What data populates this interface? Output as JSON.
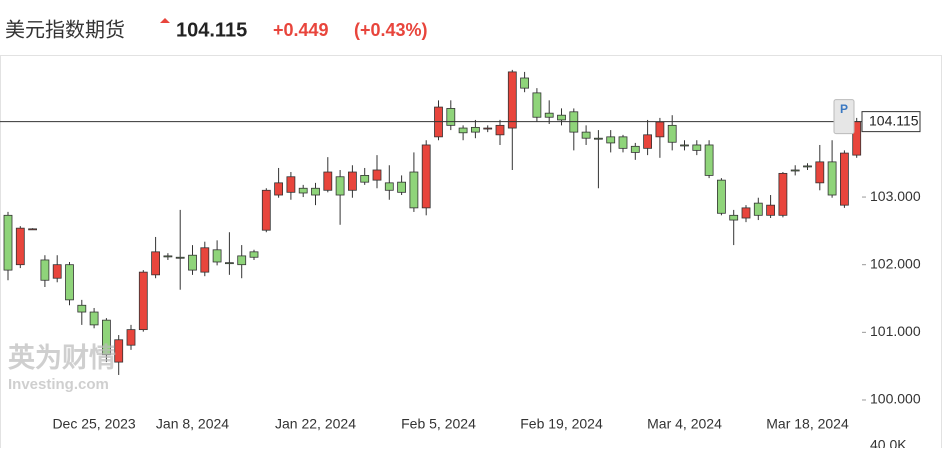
{
  "header": {
    "name": "美元指数期货",
    "price": "104.115",
    "change": "+0.449",
    "change_pct": "(+0.43%)"
  },
  "watermark": {
    "brand": "英为财情",
    "site": "Investing.com"
  },
  "chart_data": {
    "type": "candlestick",
    "categories": [
      null,
      null,
      null,
      null,
      null,
      null,
      null,
      "Dec 25, 2023",
      null,
      null,
      null,
      null,
      null,
      null,
      null,
      "Jan 8, 2024",
      null,
      null,
      null,
      null,
      null,
      null,
      null,
      null,
      null,
      "Jan 22, 2024",
      null,
      null,
      null,
      null,
      null,
      null,
      null,
      null,
      null,
      "Feb 5, 2024",
      null,
      null,
      null,
      null,
      null,
      null,
      null,
      null,
      null,
      "Feb 19, 2024",
      null,
      null,
      null,
      null,
      null,
      null,
      null,
      null,
      null,
      "Mar 4, 2024",
      null,
      null,
      null,
      null,
      null,
      null,
      null,
      null,
      null,
      "Mar 18, 2024",
      null,
      null,
      null,
      null
    ],
    "open": [
      102.73,
      102.0,
      102.53,
      102.07,
      101.8,
      102.0,
      101.4,
      101.3,
      101.18,
      100.56,
      100.81,
      101.04,
      101.85,
      102.13,
      102.11,
      102.14,
      101.89,
      102.22,
      102.03,
      102.13,
      102.19,
      102.51,
      103.03,
      103.07,
      103.13,
      103.13,
      103.1,
      103.3,
      103.1,
      103.32,
      103.25,
      103.21,
      103.22,
      103.37,
      102.84,
      103.89,
      104.31,
      104.02,
      104.03,
      104.02,
      103.92,
      104.02,
      104.76,
      104.54,
      104.24,
      104.21,
      104.26,
      103.96,
      103.87,
      103.89,
      103.89,
      103.75,
      103.72,
      103.89,
      104.06,
      103.77,
      103.77,
      103.77,
      103.25,
      102.73,
      102.69,
      102.91,
      102.73,
      102.73,
      103.4,
      103.46,
      103.21,
      103.52,
      102.88,
      103.62
    ],
    "high": [
      102.78,
      102.57,
      102.54,
      102.14,
      102.14,
      102.04,
      101.48,
      101.36,
      101.21,
      100.96,
      101.11,
      101.92,
      102.41,
      102.17,
      102.81,
      102.29,
      102.34,
      102.36,
      102.48,
      102.29,
      102.22,
      103.13,
      103.43,
      103.37,
      103.18,
      103.21,
      103.59,
      103.4,
      103.47,
      103.43,
      103.62,
      103.47,
      103.32,
      103.66,
      103.84,
      104.43,
      104.43,
      104.06,
      104.14,
      104.06,
      104.14,
      104.88,
      104.85,
      104.61,
      104.43,
      104.31,
      104.31,
      104.06,
      103.99,
      103.99,
      103.92,
      103.8,
      104.14,
      104.17,
      104.21,
      103.84,
      103.84,
      103.84,
      103.28,
      102.81,
      102.88,
      102.99,
      103.03,
      103.37,
      103.47,
      103.5,
      103.77,
      103.84,
      103.69,
      104.17
    ],
    "low": [
      101.77,
      101.95,
      102.52,
      101.67,
      101.74,
      101.4,
      101.11,
      101.06,
      100.56,
      100.37,
      100.74,
      101.01,
      101.8,
      102.07,
      101.63,
      101.85,
      101.83,
      101.99,
      101.85,
      101.8,
      102.07,
      102.48,
      102.99,
      102.96,
      103.0,
      102.88,
      103.07,
      102.59,
      102.99,
      103.18,
      103.13,
      102.96,
      103.03,
      102.78,
      102.73,
      103.84,
      103.99,
      103.84,
      103.87,
      103.96,
      103.77,
      103.4,
      104.55,
      104.11,
      104.08,
      104.06,
      103.69,
      103.77,
      103.13,
      103.66,
      103.66,
      103.55,
      103.62,
      103.58,
      103.69,
      103.69,
      103.62,
      103.28,
      102.73,
      102.29,
      102.63,
      102.66,
      102.69,
      102.7,
      103.32,
      103.4,
      103.1,
      102.99,
      102.84,
      103.58
    ],
    "close": [
      101.92,
      102.54,
      102.53,
      101.77,
      102.0,
      101.48,
      101.3,
      101.11,
      100.67,
      100.89,
      101.04,
      101.89,
      102.19,
      102.12,
      102.1,
      101.92,
      102.25,
      102.04,
      102.02,
      102.0,
      102.11,
      103.1,
      103.21,
      103.3,
      103.06,
      103.03,
      103.37,
      103.03,
      103.37,
      103.22,
      103.4,
      103.1,
      103.07,
      102.84,
      103.77,
      104.33,
      104.06,
      103.95,
      103.96,
      104.02,
      104.06,
      104.85,
      104.61,
      104.18,
      104.18,
      104.14,
      103.96,
      103.87,
      103.86,
      103.8,
      103.72,
      103.66,
      103.92,
      104.11,
      103.81,
      103.76,
      103.69,
      103.32,
      102.76,
      102.66,
      102.84,
      102.73,
      102.88,
      103.35,
      103.39,
      103.45,
      103.52,
      103.03,
      103.65,
      104.115
    ],
    "up_color": "#e8453c",
    "down_color": "#8fd47a",
    "ylim": [
      99.29,
      105.1
    ],
    "yticks": [
      {
        "value": 100,
        "label": "100.000"
      },
      {
        "value": 101,
        "label": "101.000"
      },
      {
        "value": 102,
        "label": "102.000"
      },
      {
        "value": 103,
        "label": "103.000"
      }
    ],
    "last_price": {
      "value": 104.115,
      "label": "104.115"
    },
    "last_marker": "P",
    "volume_tick": {
      "value": 40000,
      "label": "40.0K"
    }
  }
}
